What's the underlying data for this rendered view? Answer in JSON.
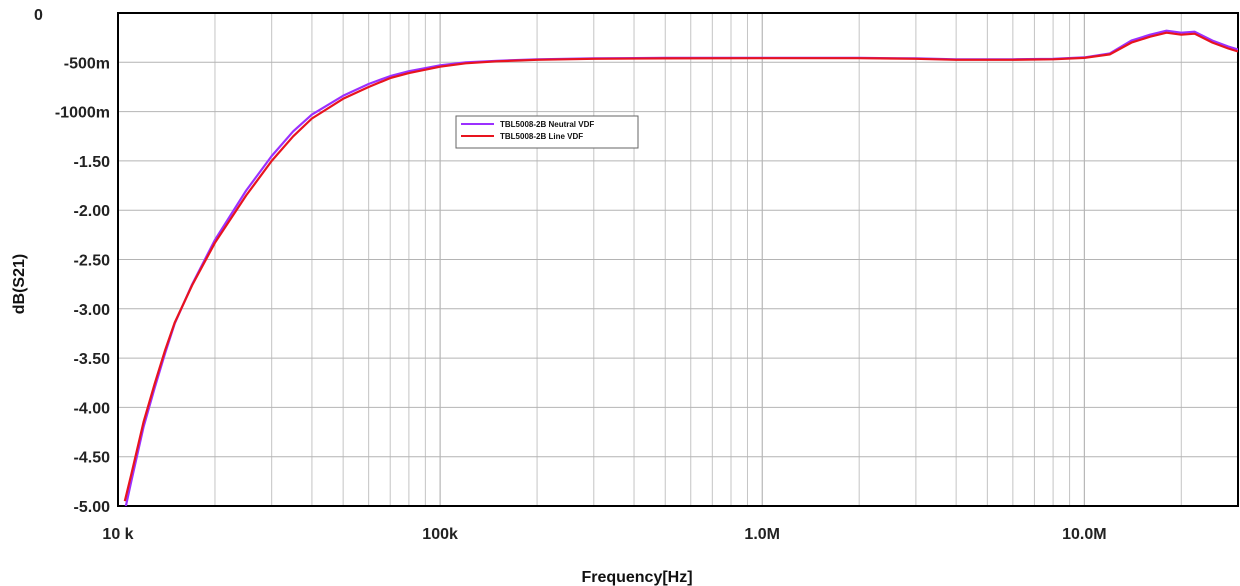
{
  "chart_data": {
    "type": "line",
    "xlabel": "Frequency[Hz]",
    "ylabel": "dB(S21)",
    "xscale": "log",
    "xlim": [
      10000,
      30000000
    ],
    "ylim": [
      -5.0,
      0
    ],
    "grid": true,
    "legend_position": "upper-left-inside",
    "x_ticks": [
      {
        "value": 10000,
        "label": "10 k"
      },
      {
        "value": 100000,
        "label": "100k"
      },
      {
        "value": 1000000,
        "label": "1.0M"
      },
      {
        "value": 10000000,
        "label": "10.0M"
      }
    ],
    "y_ticks": [
      {
        "value": 0,
        "label": "0"
      },
      {
        "value": -0.5,
        "label": "-500m"
      },
      {
        "value": -1.0,
        "label": "-1000m"
      },
      {
        "value": -1.5,
        "label": "-1.50"
      },
      {
        "value": -2.0,
        "label": "-2.00"
      },
      {
        "value": -2.5,
        "label": "-2.50"
      },
      {
        "value": -3.0,
        "label": "-3.00"
      },
      {
        "value": -3.5,
        "label": "-3.50"
      },
      {
        "value": -4.0,
        "label": "-4.00"
      },
      {
        "value": -4.5,
        "label": "-4.50"
      },
      {
        "value": -5.0,
        "label": "-5.00"
      }
    ],
    "series": [
      {
        "name": "TBL5008-2B Neutral VDF",
        "color": "#9b30ff",
        "points": [
          [
            10500,
            -5.05
          ],
          [
            11000,
            -4.75
          ],
          [
            12000,
            -4.2
          ],
          [
            13000,
            -3.8
          ],
          [
            14000,
            -3.45
          ],
          [
            15000,
            -3.15
          ],
          [
            17000,
            -2.75
          ],
          [
            20000,
            -2.3
          ],
          [
            25000,
            -1.8
          ],
          [
            30000,
            -1.45
          ],
          [
            35000,
            -1.2
          ],
          [
            40000,
            -1.03
          ],
          [
            50000,
            -0.84
          ],
          [
            60000,
            -0.72
          ],
          [
            70000,
            -0.64
          ],
          [
            80000,
            -0.59
          ],
          [
            100000,
            -0.53
          ],
          [
            120000,
            -0.5
          ],
          [
            150000,
            -0.485
          ],
          [
            200000,
            -0.47
          ],
          [
            300000,
            -0.46
          ],
          [
            500000,
            -0.455
          ],
          [
            1000000,
            -0.455
          ],
          [
            2000000,
            -0.455
          ],
          [
            3000000,
            -0.46
          ],
          [
            4000000,
            -0.47
          ],
          [
            5000000,
            -0.47
          ],
          [
            6000000,
            -0.47
          ],
          [
            8000000,
            -0.465
          ],
          [
            10000000,
            -0.45
          ],
          [
            12000000,
            -0.41
          ],
          [
            14000000,
            -0.28
          ],
          [
            16000000,
            -0.22
          ],
          [
            18000000,
            -0.18
          ],
          [
            20000000,
            -0.2
          ],
          [
            22000000,
            -0.19
          ],
          [
            25000000,
            -0.28
          ],
          [
            28000000,
            -0.34
          ],
          [
            30000000,
            -0.37
          ]
        ]
      },
      {
        "name": "TBL5008-2B Line VDF",
        "color": "#e8141e",
        "points": [
          [
            10500,
            -4.95
          ],
          [
            11000,
            -4.68
          ],
          [
            12000,
            -4.15
          ],
          [
            13000,
            -3.76
          ],
          [
            14000,
            -3.42
          ],
          [
            15000,
            -3.14
          ],
          [
            17000,
            -2.76
          ],
          [
            20000,
            -2.33
          ],
          [
            25000,
            -1.85
          ],
          [
            30000,
            -1.5
          ],
          [
            35000,
            -1.25
          ],
          [
            40000,
            -1.07
          ],
          [
            50000,
            -0.87
          ],
          [
            60000,
            -0.75
          ],
          [
            70000,
            -0.66
          ],
          [
            80000,
            -0.61
          ],
          [
            100000,
            -0.545
          ],
          [
            120000,
            -0.51
          ],
          [
            150000,
            -0.49
          ],
          [
            200000,
            -0.475
          ],
          [
            300000,
            -0.465
          ],
          [
            500000,
            -0.46
          ],
          [
            1000000,
            -0.458
          ],
          [
            2000000,
            -0.458
          ],
          [
            3000000,
            -0.465
          ],
          [
            4000000,
            -0.475
          ],
          [
            5000000,
            -0.475
          ],
          [
            6000000,
            -0.475
          ],
          [
            8000000,
            -0.47
          ],
          [
            10000000,
            -0.455
          ],
          [
            12000000,
            -0.42
          ],
          [
            14000000,
            -0.3
          ],
          [
            16000000,
            -0.24
          ],
          [
            18000000,
            -0.2
          ],
          [
            20000000,
            -0.22
          ],
          [
            22000000,
            -0.21
          ],
          [
            25000000,
            -0.3
          ],
          [
            28000000,
            -0.36
          ],
          [
            30000000,
            -0.39
          ]
        ]
      }
    ]
  }
}
